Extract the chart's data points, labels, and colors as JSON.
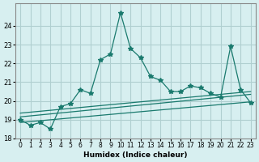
{
  "xlabel": "Humidex (Indice chaleur)",
  "ylabel": "",
  "bg_color": "#d7eff0",
  "grid_color": "#b0cfd0",
  "line_color": "#1a7a6e",
  "x_values": [
    0,
    1,
    2,
    3,
    4,
    5,
    6,
    7,
    8,
    9,
    10,
    11,
    12,
    13,
    14,
    15,
    16,
    17,
    18,
    19,
    20,
    21,
    22,
    23
  ],
  "y_main": [
    19.0,
    18.7,
    18.85,
    18.5,
    19.7,
    19.85,
    20.6,
    20.4,
    22.2,
    22.5,
    24.7,
    22.8,
    22.3,
    21.3,
    21.1,
    20.5,
    20.5,
    20.8,
    20.7,
    20.4,
    20.2,
    22.9,
    20.6,
    19.9
  ],
  "line1_x": [
    0,
    23
  ],
  "line1_y": [
    18.85,
    19.95
  ],
  "line2_x": [
    0,
    23
  ],
  "line2_y": [
    19.15,
    20.35
  ],
  "line3_x": [
    0,
    23
  ],
  "line3_y": [
    19.35,
    20.5
  ],
  "ylim": [
    18.0,
    25.2
  ],
  "xlim": [
    -0.5,
    23.5
  ],
  "yticks": [
    18,
    19,
    20,
    21,
    22,
    23,
    24
  ],
  "xtick_labels": [
    "0",
    "1",
    "2",
    "3",
    "4",
    "5",
    "6",
    "7",
    "8",
    "9",
    "10",
    "11",
    "12",
    "13",
    "14",
    "15",
    "16",
    "17",
    "18",
    "19",
    "20",
    "21",
    "22",
    "23"
  ]
}
